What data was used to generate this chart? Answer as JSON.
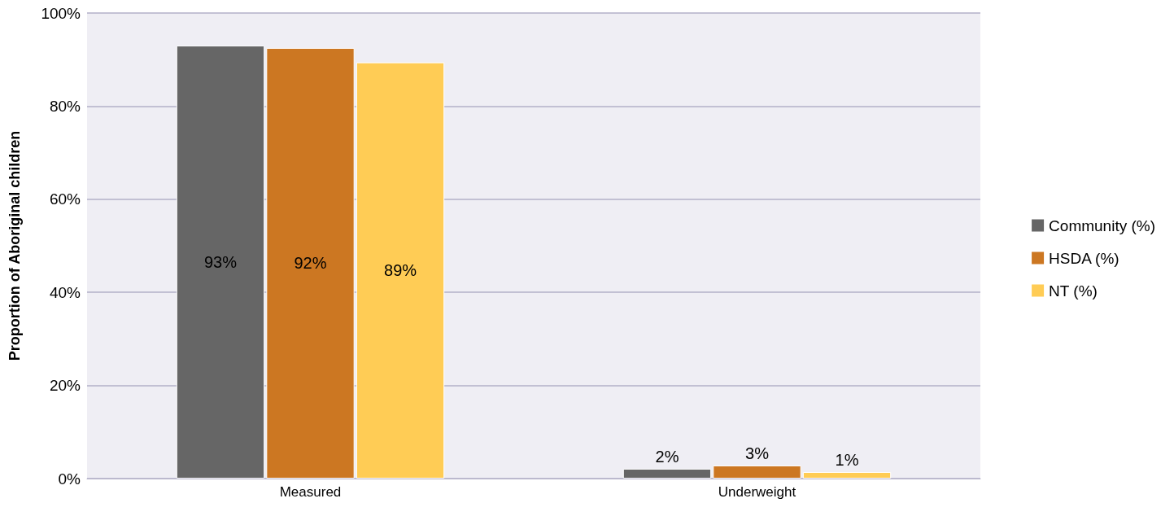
{
  "chart_data": {
    "type": "bar",
    "ylabel": "Proportion of Aboriginal children",
    "categories": [
      "Measured",
      "Underweight"
    ],
    "series": [
      {
        "name": "Community (%)",
        "color": "#666666",
        "values": [
          93,
          2.1
        ],
        "value_labels": [
          "93%",
          "2%"
        ]
      },
      {
        "name": "HSDA (%)",
        "color": "#cc7722",
        "values": [
          92.5,
          2.8
        ],
        "value_labels": [
          "92%",
          "3%"
        ]
      },
      {
        "name": "NT (%)",
        "color": "#ffcc55",
        "values": [
          89.4,
          1.4
        ],
        "value_labels": [
          "89%",
          "1%"
        ]
      }
    ],
    "ylim": [
      0,
      100
    ],
    "yticks": [
      {
        "value": 0,
        "label": "0%"
      },
      {
        "value": 20,
        "label": "20%"
      },
      {
        "value": 40,
        "label": "40%"
      },
      {
        "value": 60,
        "label": "60%"
      },
      {
        "value": 80,
        "label": "80%"
      },
      {
        "value": 100,
        "label": "100%"
      }
    ],
    "grid": "y",
    "legend": "right"
  }
}
